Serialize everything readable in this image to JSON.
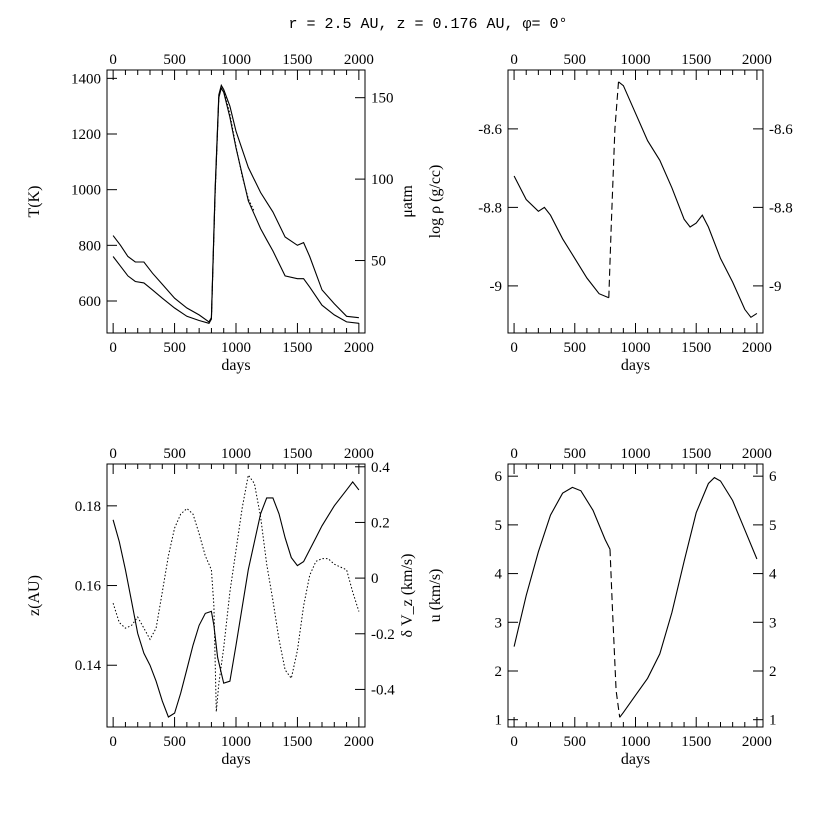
{
  "figure_title": "r = 2.5 AU, z = 0.176 AU, φ= 0°",
  "chart_data": [
    {
      "type": "line",
      "xlabel": "days",
      "ylabel": "T(K)",
      "ylabel_right": "μatm",
      "xlim": [
        -50,
        2050
      ],
      "ylim": [
        485,
        1430
      ],
      "ylim_right": [
        5.5,
        167
      ],
      "x_ticks": [
        0,
        500,
        1000,
        1500,
        2000
      ],
      "y_ticks": [
        600,
        800,
        1000,
        1200,
        1400
      ],
      "y_ticks_right": [
        50,
        100,
        150
      ],
      "series": [
        {
          "axis": "left",
          "style": "solid",
          "x": [
            0,
            60,
            120,
            180,
            250,
            320,
            400,
            500,
            600,
            700,
            780,
            800,
            830,
            860,
            880,
            900,
            950,
            1000,
            1100,
            1200,
            1250,
            1300,
            1400,
            1500,
            1550,
            1600,
            1700,
            1800,
            1900,
            2000
          ],
          "y": [
            835,
            800,
            760,
            740,
            740,
            700,
            660,
            610,
            575,
            550,
            525,
            540,
            1000,
            1340,
            1375,
            1360,
            1300,
            1210,
            1080,
            990,
            955,
            920,
            830,
            800,
            810,
            760,
            640,
            590,
            545,
            540
          ]
        },
        {
          "axis": "left",
          "style": "solid",
          "x": [
            0,
            60,
            120,
            180,
            250,
            320,
            400,
            500,
            600,
            700,
            780,
            800,
            830,
            860,
            880,
            900,
            950,
            1000,
            1100,
            1200,
            1250,
            1300,
            1400,
            1500,
            1550,
            1600,
            1700,
            1800,
            1900,
            2000
          ],
          "y": [
            760,
            725,
            690,
            670,
            665,
            640,
            610,
            575,
            545,
            530,
            520,
            535,
            990,
            1330,
            1365,
            1350,
            1260,
            1150,
            960,
            860,
            820,
            780,
            690,
            680,
            680,
            650,
            585,
            550,
            525,
            520
          ]
        },
        {
          "axis": "right",
          "style": "dotted",
          "x": [
            780,
            800,
            830,
            860,
            880,
            900,
            950,
            1000,
            1050,
            1100,
            1150
          ],
          "y": [
            12.5,
            14,
            90,
            150,
            157,
            155,
            140,
            120,
            102,
            88,
            80
          ]
        }
      ]
    },
    {
      "type": "line",
      "xlabel": "days",
      "ylabel": "log ρ (g/cc)",
      "xlim": [
        -50,
        2050
      ],
      "ylim": [
        -9.12,
        -8.45
      ],
      "x_ticks": [
        0,
        500,
        1000,
        1500,
        2000
      ],
      "y_ticks": [
        -9,
        -8.8,
        -8.6
      ],
      "y_tick_labels": [
        "-9",
        "-8.8",
        "-8.6"
      ],
      "y_ticks_right": [
        -9,
        -8.8,
        -8.6
      ],
      "y_tick_labels_right": [
        "-9",
        "-8.8",
        "-8.6"
      ],
      "series": [
        {
          "style": "solid",
          "x": [
            0,
            100,
            200,
            250,
            300,
            400,
            500,
            600,
            700,
            780
          ],
          "y": [
            -8.72,
            -8.78,
            -8.81,
            -8.8,
            -8.82,
            -8.88,
            -8.93,
            -8.98,
            -9.02,
            -9.03
          ]
        },
        {
          "style": "dashed",
          "x": [
            780,
            800,
            830,
            860
          ],
          "y": [
            -9.03,
            -8.85,
            -8.6,
            -8.48
          ]
        },
        {
          "style": "solid",
          "x": [
            860,
            900,
            1000,
            1100,
            1200,
            1300,
            1400,
            1450,
            1500,
            1550,
            1600,
            1700,
            1800,
            1900,
            1950,
            2000
          ],
          "y": [
            -8.48,
            -8.49,
            -8.56,
            -8.63,
            -8.68,
            -8.75,
            -8.83,
            -8.85,
            -8.84,
            -8.82,
            -8.85,
            -8.93,
            -8.99,
            -9.06,
            -9.08,
            -9.07
          ]
        }
      ]
    },
    {
      "type": "line",
      "xlabel": "days",
      "ylabel": "z(AU)",
      "ylabel_right": "δ V_z (km/s)",
      "xlim": [
        -50,
        2050
      ],
      "ylim": [
        0.1245,
        0.1905
      ],
      "ylim_right": [
        -0.535,
        0.41
      ],
      "x_ticks": [
        0,
        500,
        1000,
        1500,
        2000
      ],
      "y_ticks": [
        0.14,
        0.16,
        0.18
      ],
      "y_tick_labels": [
        "0.14",
        "0.16",
        "0.18"
      ],
      "y_ticks_right": [
        -0.4,
        -0.2,
        0,
        0.2,
        0.4
      ],
      "y_tick_labels_right": [
        "-0.4",
        "-0.2",
        "0",
        "0.2",
        "0.4"
      ],
      "series": [
        {
          "axis": "left",
          "style": "solid",
          "x": [
            0,
            50,
            100,
            150,
            200,
            250,
            300,
            350,
            400,
            450,
            500,
            550,
            600,
            650,
            700,
            750,
            800,
            820,
            850,
            900,
            950,
            1000,
            1100,
            1200,
            1250,
            1300,
            1350,
            1400,
            1450,
            1500,
            1550,
            1600,
            1650,
            1700,
            1800,
            1900,
            1950,
            2000
          ],
          "y": [
            0.1765,
            0.171,
            0.164,
            0.156,
            0.148,
            0.143,
            0.14,
            0.136,
            0.131,
            0.127,
            0.128,
            0.133,
            0.139,
            0.145,
            0.15,
            0.153,
            0.1535,
            0.15,
            0.142,
            0.1355,
            0.136,
            0.145,
            0.164,
            0.178,
            0.182,
            0.182,
            0.178,
            0.172,
            0.167,
            0.165,
            0.166,
            0.169,
            0.172,
            0.175,
            0.18,
            0.184,
            0.186,
            0.184
          ]
        },
        {
          "axis": "right",
          "style": "dotted",
          "x": [
            0,
            50,
            100,
            150,
            200,
            250,
            300,
            350,
            400,
            450,
            500,
            550,
            600,
            650,
            700,
            750,
            800,
            820,
            840,
            860,
            900,
            950,
            1000,
            1050,
            1100,
            1150,
            1200,
            1250,
            1300,
            1350,
            1400,
            1450,
            1500,
            1550,
            1600,
            1650,
            1700,
            1750,
            1800,
            1850,
            1900,
            1950,
            2000
          ],
          "y": [
            -0.09,
            -0.16,
            -0.18,
            -0.17,
            -0.14,
            -0.18,
            -0.22,
            -0.18,
            -0.05,
            0.08,
            0.18,
            0.23,
            0.25,
            0.23,
            0.16,
            0.08,
            0.03,
            -0.1,
            -0.48,
            -0.38,
            -0.25,
            -0.05,
            0.1,
            0.25,
            0.37,
            0.34,
            0.22,
            0.05,
            -0.08,
            -0.22,
            -0.33,
            -0.36,
            -0.26,
            -0.1,
            0.01,
            0.06,
            0.07,
            0.07,
            0.05,
            0.04,
            0.03,
            -0.05,
            -0.12
          ]
        }
      ]
    },
    {
      "type": "line",
      "xlabel": "days",
      "ylabel": "u (km/s)",
      "xlim": [
        -50,
        2050
      ],
      "ylim": [
        0.85,
        6.25
      ],
      "x_ticks": [
        0,
        500,
        1000,
        1500,
        2000
      ],
      "y_ticks": [
        1,
        2,
        3,
        4,
        5,
        6
      ],
      "y_ticks_right": [
        1,
        2,
        3,
        4,
        5,
        6
      ],
      "series": [
        {
          "style": "solid",
          "x": [
            0,
            100,
            200,
            300,
            400,
            480,
            550,
            650,
            750,
            790
          ],
          "y": [
            2.5,
            3.55,
            4.45,
            5.2,
            5.65,
            5.77,
            5.7,
            5.3,
            4.7,
            4.5
          ]
        },
        {
          "style": "dashed",
          "x": [
            790,
            810,
            840,
            870
          ],
          "y": [
            4.5,
            3.3,
            1.6,
            1.05
          ]
        },
        {
          "style": "solid",
          "x": [
            870,
            900,
            1000,
            1100,
            1200,
            1300,
            1400,
            1500,
            1600,
            1650,
            1700,
            1800,
            1900,
            2000
          ],
          "y": [
            1.05,
            1.15,
            1.5,
            1.85,
            2.35,
            3.2,
            4.25,
            5.25,
            5.85,
            5.97,
            5.9,
            5.5,
            4.9,
            4.3
          ]
        }
      ]
    }
  ]
}
